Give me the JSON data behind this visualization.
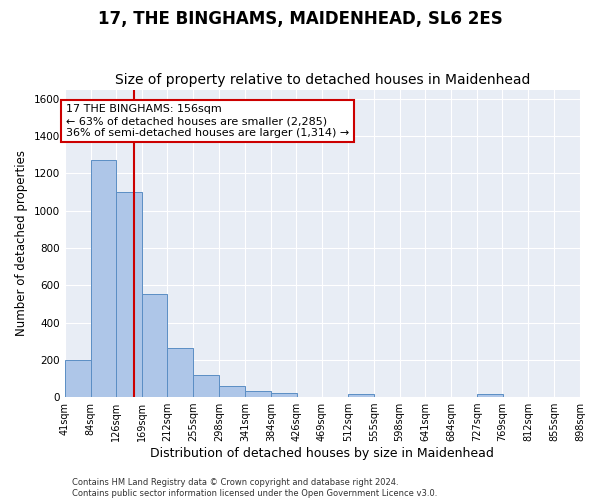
{
  "title": "17, THE BINGHAMS, MAIDENHEAD, SL6 2ES",
  "subtitle": "Size of property relative to detached houses in Maidenhead",
  "xlabel": "Distribution of detached houses by size in Maidenhead",
  "ylabel": "Number of detached properties",
  "footer_line1": "Contains HM Land Registry data © Crown copyright and database right 2024.",
  "footer_line2": "Contains public sector information licensed under the Open Government Licence v3.0.",
  "bin_edges": [
    41,
    84,
    126,
    169,
    212,
    255,
    298,
    341,
    384,
    426,
    469,
    512,
    555,
    598,
    641,
    684,
    727,
    769,
    812,
    855,
    898
  ],
  "bar_heights": [
    200,
    1270,
    1100,
    555,
    265,
    120,
    58,
    32,
    22,
    0,
    0,
    14,
    0,
    0,
    0,
    0,
    14,
    0,
    0,
    0
  ],
  "bar_color": "#aec6e8",
  "bar_edge_color": "#5b8ec4",
  "vline_x": 156,
  "vline_color": "#cc0000",
  "annotation_line1": "17 THE BINGHAMS: 156sqm",
  "annotation_line2": "← 63% of detached houses are smaller (2,285)",
  "annotation_line3": "36% of semi-detached houses are larger (1,314) →",
  "annotation_box_color": "#ffffff",
  "annotation_box_edge": "#cc0000",
  "ylim": [
    0,
    1650
  ],
  "yticks": [
    0,
    200,
    400,
    600,
    800,
    1000,
    1200,
    1400,
    1600
  ],
  "bg_color": "#e8edf5",
  "grid_color": "#ffffff",
  "title_fontsize": 12,
  "subtitle_fontsize": 10,
  "tick_label_fontsize": 7,
  "ylabel_fontsize": 8.5,
  "xlabel_fontsize": 9,
  "annotation_fontsize": 8
}
